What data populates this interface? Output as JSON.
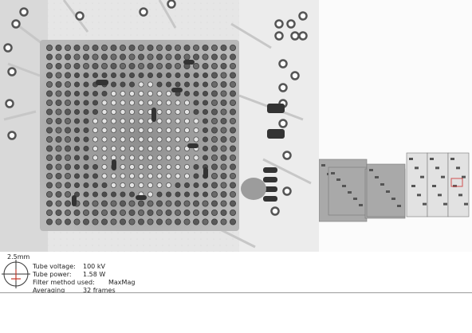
{
  "scale_bar": {
    "label": "2.5mm"
  },
  "parameters": [
    {
      "label": "Tube voltage:",
      "value": "100 kV"
    },
    {
      "label": "Tube power:",
      "value": "1.58 W"
    },
    {
      "label": "Filter method used:",
      "value": "MaxMag"
    },
    {
      "label": "Averaging",
      "value": "32 frames"
    }
  ],
  "thumbnails": {
    "count": 7,
    "highlighted_index": 5
  }
}
